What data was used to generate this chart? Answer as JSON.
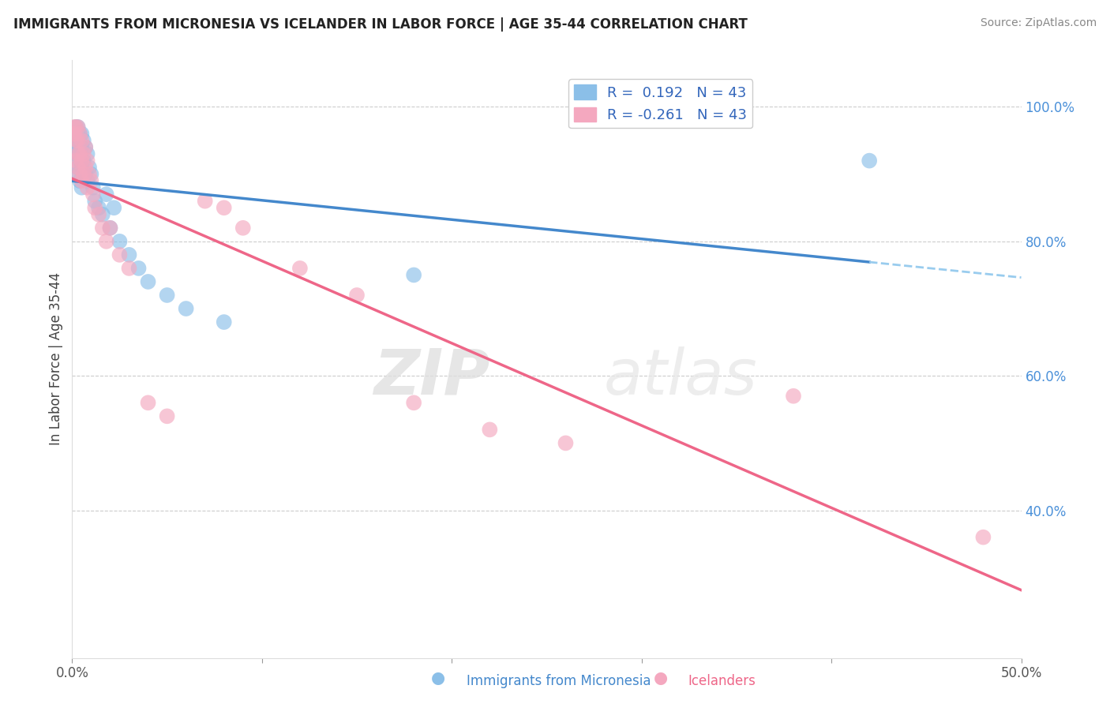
{
  "title": "IMMIGRANTS FROM MICRONESIA VS ICELANDER IN LABOR FORCE | AGE 35-44 CORRELATION CHART",
  "source": "Source: ZipAtlas.com",
  "ylabel": "In Labor Force | Age 35-44",
  "x_label_legend1": "Immigrants from Micronesia",
  "x_label_legend2": "Icelanders",
  "xlim": [
    0.0,
    0.5
  ],
  "ylim": [
    0.18,
    1.07
  ],
  "x_tick_positions": [
    0.0,
    0.1,
    0.2,
    0.3,
    0.4,
    0.5
  ],
  "x_tick_labels": [
    "0.0%",
    "",
    "",
    "",
    "",
    "50.0%"
  ],
  "y_ticks_right": [
    0.4,
    0.6,
    0.8,
    1.0
  ],
  "y_tick_labels_right": [
    "40.0%",
    "60.0%",
    "80.0%",
    "100.0%"
  ],
  "R_blue": 0.192,
  "N_blue": 43,
  "R_pink": -0.261,
  "N_pink": 43,
  "blue_color": "#8BBFE8",
  "pink_color": "#F4A8BF",
  "line_blue_solid": "#4488CC",
  "line_blue_dashed": "#99CCEE",
  "line_pink": "#EE6688",
  "watermark_zip": "ZIP",
  "watermark_atlas": "atlas",
  "blue_scatter_x": [
    0.001,
    0.001,
    0.002,
    0.002,
    0.002,
    0.002,
    0.003,
    0.003,
    0.003,
    0.003,
    0.003,
    0.004,
    0.004,
    0.004,
    0.004,
    0.005,
    0.005,
    0.005,
    0.005,
    0.006,
    0.006,
    0.007,
    0.007,
    0.008,
    0.008,
    0.009,
    0.01,
    0.011,
    0.012,
    0.014,
    0.016,
    0.018,
    0.02,
    0.022,
    0.025,
    0.03,
    0.035,
    0.04,
    0.05,
    0.06,
    0.08,
    0.18,
    0.42
  ],
  "blue_scatter_y": [
    0.96,
    0.94,
    0.97,
    0.95,
    0.93,
    0.9,
    0.97,
    0.96,
    0.95,
    0.93,
    0.91,
    0.96,
    0.94,
    0.92,
    0.89,
    0.96,
    0.94,
    0.91,
    0.88,
    0.95,
    0.92,
    0.94,
    0.9,
    0.93,
    0.89,
    0.91,
    0.9,
    0.88,
    0.86,
    0.85,
    0.84,
    0.87,
    0.82,
    0.85,
    0.8,
    0.78,
    0.76,
    0.74,
    0.72,
    0.7,
    0.68,
    0.75,
    0.92
  ],
  "pink_scatter_x": [
    0.001,
    0.001,
    0.002,
    0.002,
    0.002,
    0.003,
    0.003,
    0.003,
    0.003,
    0.004,
    0.004,
    0.004,
    0.005,
    0.005,
    0.005,
    0.006,
    0.006,
    0.007,
    0.007,
    0.008,
    0.008,
    0.009,
    0.01,
    0.011,
    0.012,
    0.014,
    0.016,
    0.018,
    0.02,
    0.025,
    0.03,
    0.04,
    0.05,
    0.07,
    0.08,
    0.09,
    0.12,
    0.15,
    0.18,
    0.22,
    0.26,
    0.38,
    0.48
  ],
  "pink_scatter_y": [
    0.97,
    0.96,
    0.97,
    0.95,
    0.92,
    0.97,
    0.95,
    0.93,
    0.91,
    0.96,
    0.93,
    0.9,
    0.95,
    0.92,
    0.89,
    0.93,
    0.9,
    0.94,
    0.91,
    0.92,
    0.88,
    0.9,
    0.89,
    0.87,
    0.85,
    0.84,
    0.82,
    0.8,
    0.82,
    0.78,
    0.76,
    0.56,
    0.54,
    0.86,
    0.85,
    0.82,
    0.76,
    0.72,
    0.56,
    0.52,
    0.5,
    0.57,
    0.36
  ]
}
